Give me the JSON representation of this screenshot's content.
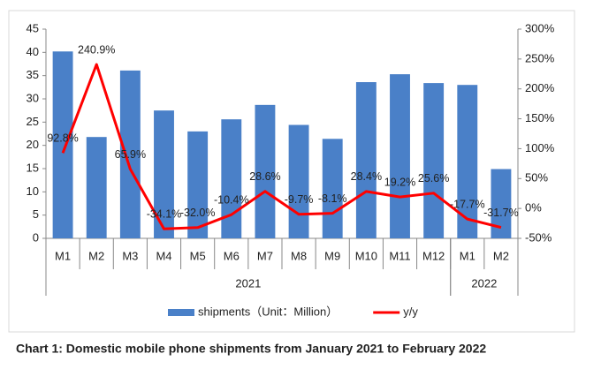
{
  "chart_data": {
    "type": "bar_line",
    "title": "Chart 1: Domestic mobile phone shipments from January 2021 to February 2022",
    "categories": [
      "M1",
      "M2",
      "M3",
      "M4",
      "M5",
      "M6",
      "M7",
      "M8",
      "M9",
      "M10",
      "M11",
      "M12",
      "M1",
      "M2"
    ],
    "groups": [
      {
        "name": "2021",
        "count": 12
      },
      {
        "name": "2022",
        "count": 2
      }
    ],
    "series": [
      {
        "name": "shipments（Unit：Million）",
        "type": "bar",
        "color": "#4a80c8",
        "values": [
          40.2,
          21.8,
          36.1,
          27.5,
          23.0,
          25.6,
          28.7,
          24.4,
          21.4,
          33.6,
          35.3,
          33.4,
          33.0,
          14.9
        ]
      },
      {
        "name": "y/y",
        "type": "line",
        "axis": "y2",
        "color": "#ff0000",
        "values": [
          92.8,
          240.9,
          65.9,
          -34.1,
          -32.0,
          -10.4,
          28.6,
          -9.7,
          -8.1,
          28.4,
          19.2,
          25.6,
          -17.7,
          -31.7
        ],
        "value_labels": [
          "92.8%",
          "240.9%",
          "65.9%",
          "-34.1%",
          "-32.0%",
          "-10.4%",
          "28.6%",
          "-9.7%",
          "-8.1%",
          "28.4%",
          "19.2%",
          "25.6%",
          "-17.7%",
          "-31.7%"
        ]
      }
    ],
    "ylim": [
      0,
      45
    ],
    "yticks": [
      0,
      5,
      10,
      15,
      20,
      25,
      30,
      35,
      40,
      45
    ],
    "y2lim": [
      -50,
      300
    ],
    "y2ticks": [
      {
        "value": -50,
        "label": "-50%"
      },
      {
        "value": 0,
        "label": "0%"
      },
      {
        "value": 50,
        "label": "50%"
      },
      {
        "value": 100,
        "label": "100%"
      },
      {
        "value": 150,
        "label": "150%"
      },
      {
        "value": 200,
        "label": "200%"
      },
      {
        "value": 250,
        "label": "250%"
      },
      {
        "value": 300,
        "label": "300%"
      }
    ],
    "legend": "bottom"
  }
}
